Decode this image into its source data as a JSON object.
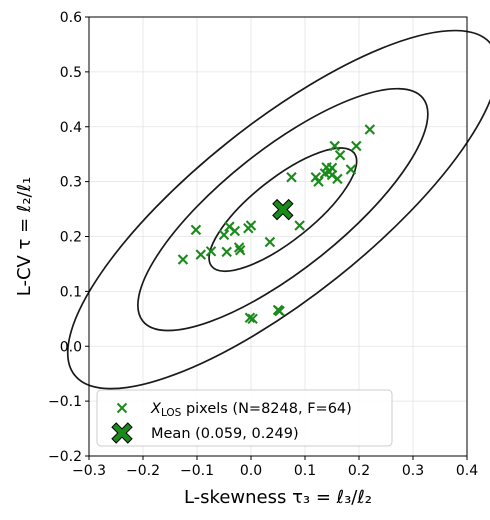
{
  "chart_data": {
    "type": "scatter",
    "xlabel": "L-skewness τ₃ = ℓ₃/ℓ₂",
    "ylabel": "L-CV τ = ℓ₂/ℓ₁",
    "xlim": [
      -0.3,
      0.4
    ],
    "ylim": [
      -0.2,
      0.6
    ],
    "x_ticks": [
      -0.3,
      -0.2,
      -0.1,
      0.0,
      0.1,
      0.2,
      0.3,
      0.4
    ],
    "y_ticks": [
      -0.2,
      -0.1,
      0.0,
      0.1,
      0.2,
      0.3,
      0.4,
      0.5,
      0.6
    ],
    "x_tick_labels": [
      "−0.3",
      "−0.2",
      "−0.1",
      "0.0",
      "0.1",
      "0.2",
      "0.3",
      "0.4"
    ],
    "y_tick_labels": [
      "−0.2",
      "−0.1",
      "0.0",
      "0.1",
      "0.2",
      "0.3",
      "0.4",
      "0.5",
      "0.6"
    ],
    "grid": true,
    "legend_position": "lower-left",
    "series": [
      {
        "name": "X_LOS pixels (N=8248, F=64)",
        "legend_main": "X",
        "legend_sub": "LOS",
        "legend_rest": " pixels (N=8248, F=64)",
        "marker": "x",
        "color": "#1a8a1a",
        "points": [
          [
            -0.126,
            0.158
          ],
          [
            -0.102,
            0.212
          ],
          [
            -0.093,
            0.167
          ],
          [
            -0.074,
            0.173
          ],
          [
            -0.05,
            0.203
          ],
          [
            -0.04,
            0.218
          ],
          [
            -0.03,
            0.21
          ],
          [
            -0.045,
            0.172
          ],
          [
            -0.022,
            0.18
          ],
          [
            -0.02,
            0.175
          ],
          [
            -0.005,
            0.215
          ],
          [
            0.0,
            0.22
          ],
          [
            -0.002,
            0.052
          ],
          [
            0.003,
            0.05
          ],
          [
            0.035,
            0.19
          ],
          [
            0.05,
            0.066
          ],
          [
            0.053,
            0.064
          ],
          [
            0.075,
            0.308
          ],
          [
            0.09,
            0.22
          ],
          [
            0.12,
            0.308
          ],
          [
            0.125,
            0.3
          ],
          [
            0.137,
            0.315
          ],
          [
            0.14,
            0.326
          ],
          [
            0.145,
            0.318
          ],
          [
            0.15,
            0.312
          ],
          [
            0.15,
            0.325
          ],
          [
            0.155,
            0.365
          ],
          [
            0.16,
            0.305
          ],
          [
            0.165,
            0.348
          ],
          [
            0.185,
            0.322
          ],
          [
            0.195,
            0.365
          ],
          [
            0.22,
            0.395
          ]
        ]
      },
      {
        "name": "Mean (0.059, 0.249)",
        "marker": "X",
        "color": "#1a8a1a",
        "points": [
          [
            0.059,
            0.249
          ]
        ]
      }
    ],
    "contours": {
      "center": [
        0.059,
        0.249
      ],
      "count": 3
    }
  }
}
